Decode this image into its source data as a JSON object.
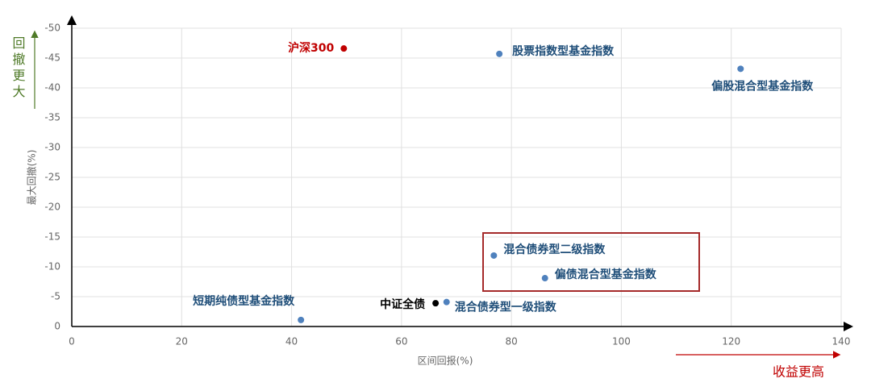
{
  "chart_data": {
    "type": "scatter",
    "x_label": "区间回报(%)",
    "y_label": "最大回撤(%)",
    "y_note": "回撤更大",
    "x_note": "收益更高",
    "xlim": [
      0,
      140
    ],
    "xticks": [
      0,
      20,
      40,
      60,
      80,
      100,
      120,
      140
    ],
    "ylim": [
      0,
      -50
    ],
    "yticks": [
      0,
      -5,
      -10,
      -15,
      -20,
      -25,
      -30,
      -35,
      -40,
      -45,
      -50
    ],
    "grid": true,
    "series": [
      {
        "name": "沪深300",
        "color": "#c00000",
        "x": [
          49.5
        ],
        "y": [
          -46.6
        ]
      },
      {
        "name": "股票指数型基金指数",
        "color": "#4f81bd",
        "x": [
          77.8
        ],
        "y": [
          -45.7
        ]
      },
      {
        "name": "偏股混合型基金指数",
        "color": "#4f81bd",
        "x": [
          121.7
        ],
        "y": [
          -43.2
        ]
      },
      {
        "name": "混合债券型二级指数",
        "color": "#4f81bd",
        "x": [
          76.8
        ],
        "y": [
          -11.9
        ]
      },
      {
        "name": "偏债混合型基金指数",
        "color": "#4f81bd",
        "x": [
          86.1
        ],
        "y": [
          -8.1
        ]
      },
      {
        "name": "短期纯债型基金指数",
        "color": "#4f81bd",
        "x": [
          41.7
        ],
        "y": [
          -1.1
        ]
      },
      {
        "name": "中证全债",
        "color": "#000000",
        "x": [
          66.2
        ],
        "y": [
          -3.9
        ]
      },
      {
        "name": "混合债券型一级指数",
        "color": "#4f81bd",
        "x": [
          68.2
        ],
        "y": [
          -4.1
        ]
      }
    ]
  }
}
